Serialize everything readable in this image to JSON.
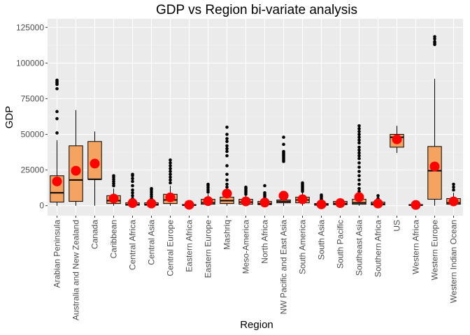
{
  "chart_data": {
    "type": "box",
    "title": "GDP vs Region bi-variate analysis",
    "xlabel": "Region",
    "ylabel": "GDP",
    "ylim": [
      -7000,
      131000
    ],
    "yticks": [
      0,
      25000,
      50000,
      75000,
      100000,
      125000
    ],
    "ytick_labels": [
      "0",
      "25000",
      "50000",
      "75000",
      "100000",
      "125000"
    ],
    "grid": true,
    "colors": {
      "panel": "#ebebeb",
      "grid_major": "#ffffff",
      "box_fill": "#f4a460",
      "box_line": "#000000",
      "mean_point": "#ff0000",
      "outlier": "#000000"
    },
    "categories": [
      "Arabian Peninsula",
      "Australia and New Zealand",
      "Canada",
      "Caribbean",
      "Central Africa",
      "Central Asia",
      "Central Europe",
      "Eastern Africa",
      "Eastern Europe",
      "Mashriq",
      "Meso-America",
      "North Africa",
      "NW Pacific and East Asia",
      "South America",
      "South Asia",
      "South Pacific",
      "Southeast Asia",
      "Southern Africa",
      "US",
      "Western Africa",
      "Western Europe",
      "Western Indian Ocean"
    ],
    "boxes": [
      {
        "low": 0,
        "q1": 2500,
        "median": 9000,
        "q3": 21000,
        "high": 46000,
        "mean": 17000,
        "outliers": [
          51000,
          61000,
          66000,
          82000,
          85000,
          86000,
          87000,
          88000
        ]
      },
      {
        "low": 0,
        "q1": 3000,
        "median": 18000,
        "q3": 42000,
        "high": 67000,
        "mean": 24500,
        "outliers": []
      },
      {
        "low": 0,
        "q1": 18500,
        "median": 18500,
        "q3": 45000,
        "high": 52000,
        "mean": 29500,
        "outliers": []
      },
      {
        "low": 0,
        "q1": 1500,
        "median": 3500,
        "q3": 7000,
        "high": 12000,
        "mean": 5000,
        "outliers": [
          14000,
          15500,
          17000,
          18500,
          20000,
          21000
        ]
      },
      {
        "low": 0,
        "q1": 300,
        "median": 700,
        "q3": 2000,
        "high": 4000,
        "mean": 1800,
        "outliers": [
          5000,
          7000,
          9000,
          11000,
          14000,
          17000,
          19000,
          21000,
          22000
        ]
      },
      {
        "low": 0,
        "q1": 300,
        "median": 800,
        "q3": 2000,
        "high": 4000,
        "mean": 1500,
        "outliers": [
          5000,
          6500,
          8000,
          9500,
          11000,
          12000
        ]
      },
      {
        "low": 0,
        "q1": 1500,
        "median": 4000,
        "q3": 8000,
        "high": 14000,
        "mean": 5800,
        "outliers": [
          16000,
          18000,
          20000,
          22000,
          24000,
          26000,
          28000,
          30000,
          32000
        ]
      },
      {
        "low": 0,
        "q1": 200,
        "median": 400,
        "q3": 800,
        "high": 1500,
        "mean": 600,
        "outliers": []
      },
      {
        "low": 0,
        "q1": 1000,
        "median": 2000,
        "q3": 4500,
        "high": 8000,
        "mean": 3200,
        "outliers": [
          9500,
          11000,
          12500,
          14000,
          15000
        ]
      },
      {
        "low": 0,
        "q1": 1500,
        "median": 3500,
        "q3": 6000,
        "high": 11000,
        "mean": 8500,
        "outliers": [
          13000,
          15000,
          18000,
          22000,
          28000,
          35000,
          38000,
          40000,
          42000,
          45000,
          47000,
          50000,
          55000
        ]
      },
      {
        "low": 0,
        "q1": 1000,
        "median": 2500,
        "q3": 4500,
        "high": 7000,
        "mean": 3000,
        "outliers": [
          8000,
          9000,
          10000,
          11000,
          12000,
          13000
        ]
      },
      {
        "low": 0,
        "q1": 700,
        "median": 1500,
        "q3": 3000,
        "high": 5000,
        "mean": 2200,
        "outliers": [
          6000,
          7000,
          8000,
          9000,
          14000
        ]
      },
      {
        "low": 0,
        "q1": 2000,
        "median": 3000,
        "q3": 4000,
        "high": 7000,
        "mean": 7000,
        "outliers": [
          31000,
          32000,
          33000,
          34000,
          35000,
          36000,
          37000,
          38000,
          43000,
          48000
        ]
      },
      {
        "low": 0,
        "q1": 2000,
        "median": 4000,
        "q3": 6000,
        "high": 9000,
        "mean": 4500,
        "outliers": [
          10000,
          11000,
          12000,
          13000,
          14000,
          15000,
          16000
        ]
      },
      {
        "low": 0,
        "q1": 300,
        "median": 700,
        "q3": 1500,
        "high": 2500,
        "mean": 900,
        "outliers": [
          3500,
          4500,
          5500,
          6500,
          7500
        ]
      },
      {
        "low": 0,
        "q1": 700,
        "median": 1500,
        "q3": 3000,
        "high": 4000,
        "mean": 1800,
        "outliers": []
      },
      {
        "low": 0,
        "q1": 1000,
        "median": 2000,
        "q3": 4500,
        "high": 7500,
        "mean": 6000,
        "outliers": [
          10000,
          12000,
          15000,
          18000,
          21000,
          24000,
          27000,
          30000,
          33000,
          35000,
          37000,
          39000,
          41000,
          44000,
          46000,
          48000,
          50000,
          52000,
          54000,
          56000
        ]
      },
      {
        "low": 0,
        "q1": 500,
        "median": 1200,
        "q3": 2500,
        "high": 4000,
        "mean": 1500,
        "outliers": [
          5000,
          7000
        ]
      },
      {
        "low": 37000,
        "q1": 41000,
        "median": 48000,
        "q3": 50000,
        "high": 56000,
        "mean": 46500,
        "outliers": []
      },
      {
        "low": 0,
        "q1": 200,
        "median": 400,
        "q3": 800,
        "high": 1500,
        "mean": 500,
        "outliers": []
      },
      {
        "low": 0,
        "q1": 4500,
        "median": 24500,
        "q3": 41500,
        "high": 89000,
        "mean": 27500,
        "outliers": [
          113000,
          114000,
          115000,
          117000,
          118500
        ]
      },
      {
        "low": 0,
        "q1": 1000,
        "median": 2000,
        "q3": 5000,
        "high": 9000,
        "mean": 3000,
        "outliers": [
          11000,
          13000,
          15000
        ]
      }
    ]
  }
}
